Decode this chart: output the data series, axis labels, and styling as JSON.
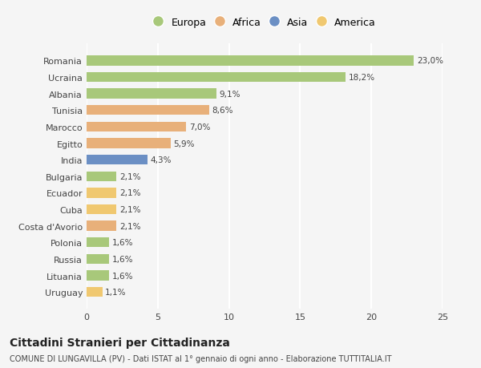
{
  "categories": [
    "Romania",
    "Ucraina",
    "Albania",
    "Tunisia",
    "Marocco",
    "Egitto",
    "India",
    "Bulgaria",
    "Ecuador",
    "Cuba",
    "Costa d'Avorio",
    "Polonia",
    "Russia",
    "Lituania",
    "Uruguay"
  ],
  "values": [
    23.0,
    18.2,
    9.1,
    8.6,
    7.0,
    5.9,
    4.3,
    2.1,
    2.1,
    2.1,
    2.1,
    1.6,
    1.6,
    1.6,
    1.1
  ],
  "labels": [
    "23,0%",
    "18,2%",
    "9,1%",
    "8,6%",
    "7,0%",
    "5,9%",
    "4,3%",
    "2,1%",
    "2,1%",
    "2,1%",
    "2,1%",
    "1,6%",
    "1,6%",
    "1,6%",
    "1,1%"
  ],
  "colors": [
    "#a8c87a",
    "#a8c87a",
    "#a8c87a",
    "#e8b07a",
    "#e8b07a",
    "#e8b07a",
    "#6b8fc4",
    "#a8c87a",
    "#f0c870",
    "#f0c870",
    "#e8b07a",
    "#a8c87a",
    "#a8c87a",
    "#a8c87a",
    "#f0c870"
  ],
  "legend_labels": [
    "Europa",
    "Africa",
    "Asia",
    "America"
  ],
  "legend_colors": [
    "#a8c87a",
    "#e8b07a",
    "#6b8fc4",
    "#f0c870"
  ],
  "title": "Cittadini Stranieri per Cittadinanza",
  "subtitle": "COMUNE DI LUNGAVILLA (PV) - Dati ISTAT al 1° gennaio di ogni anno - Elaborazione TUTTITALIA.IT",
  "xlim": [
    0,
    25
  ],
  "xticks": [
    0,
    5,
    10,
    15,
    20,
    25
  ],
  "background_color": "#f5f5f5",
  "grid_color": "#ffffff",
  "bar_height": 0.6
}
